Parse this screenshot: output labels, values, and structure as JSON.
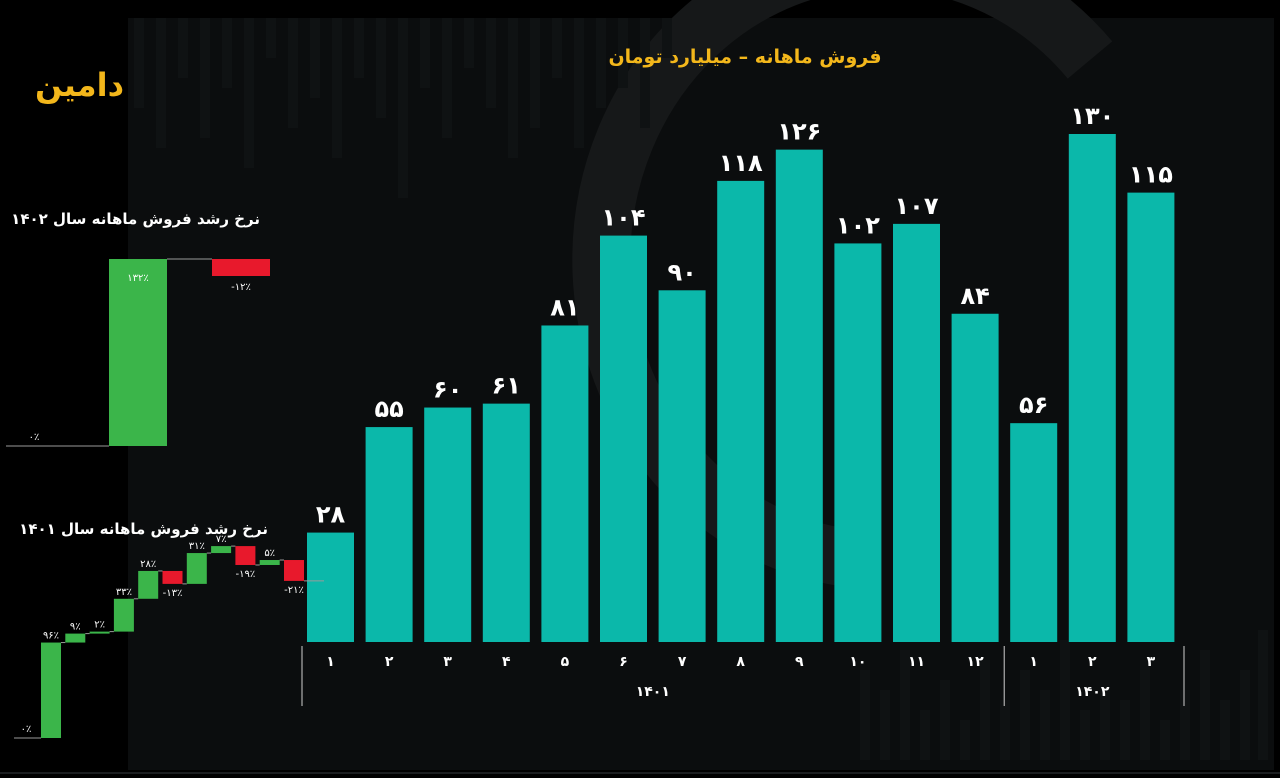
{
  "logo": "دامین",
  "colors": {
    "bar": "#0bb8aa",
    "gold": "#f3b71b",
    "positive": "#3bb54a",
    "negative": "#e8192c",
    "background": "#000000"
  },
  "chart_data": [
    {
      "type": "bar",
      "title": "فروش ماهانه – میلیارد تومان",
      "xlabel": "",
      "ylabel": "",
      "categories": [
        "۱",
        "۲",
        "۳",
        "۴",
        "۵",
        "۶",
        "۷",
        "۸",
        "۹",
        "۱۰",
        "۱۱",
        "۱۲",
        "۱",
        "۲",
        "۳"
      ],
      "group_labels": [
        {
          "label": "۱۴۰۱",
          "from": 0,
          "to": 11
        },
        {
          "label": "۱۴۰۲",
          "from": 12,
          "to": 14
        }
      ],
      "values": [
        28,
        55,
        60,
        61,
        81,
        104,
        90,
        118,
        126,
        102,
        107,
        84,
        56,
        130,
        115
      ],
      "value_labels": [
        "۲۸",
        "۵۵",
        "۶۰",
        "۶۱",
        "۸۱",
        "۱۰۴",
        "۹۰",
        "۱۱۸",
        "۱۲۶",
        "۱۰۲",
        "۱۰۷",
        "۸۴",
        "۵۶",
        "۱۳۰",
        "۱۱۵"
      ],
      "ylim": [
        0,
        140
      ],
      "grid": false,
      "legend": "none"
    },
    {
      "type": "waterfall",
      "title": "نرخ رشد فروش ماهانه سال ۱۴۰۲",
      "start_label": "۰٪",
      "values": [
        132,
        -12
      ],
      "labels": [
        "۱۳۲٪",
        "-۱۲٪"
      ],
      "ylim": [
        0,
        135
      ]
    },
    {
      "type": "waterfall",
      "title": "نرخ رشد فروش ماهانه سال ۱۴۰۱",
      "start_label": "۰٪",
      "values": [
        96,
        9,
        2,
        33,
        28,
        -13,
        31,
        7,
        -19,
        5,
        -21
      ],
      "labels": [
        "۹۶٪",
        "۹٪",
        "۲٪",
        "۳۳٪",
        "۲۸٪",
        "-۱۳٪",
        "۳۱٪",
        "۷٪",
        "-۱۹٪",
        "۵٪",
        "-۲۱٪"
      ],
      "ylim": [
        0,
        176
      ]
    }
  ]
}
